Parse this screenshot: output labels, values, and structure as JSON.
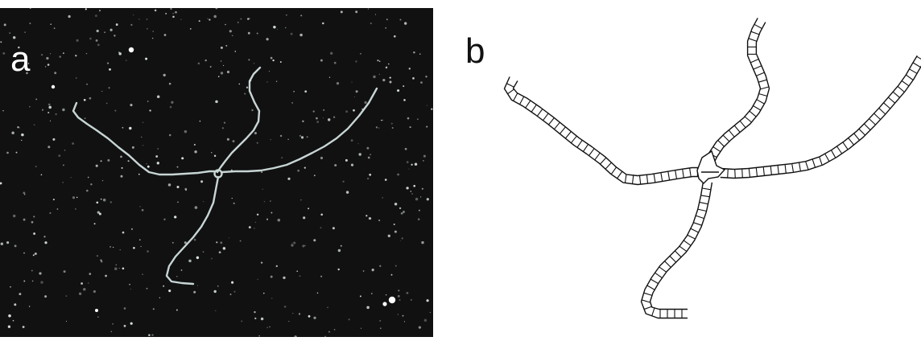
{
  "figure": {
    "panel_a": {
      "label": "a",
      "background": "#111111",
      "strand_color": "#d8e6e6"
    },
    "panel_b": {
      "label": "b",
      "line_color": "#111111"
    }
  }
}
